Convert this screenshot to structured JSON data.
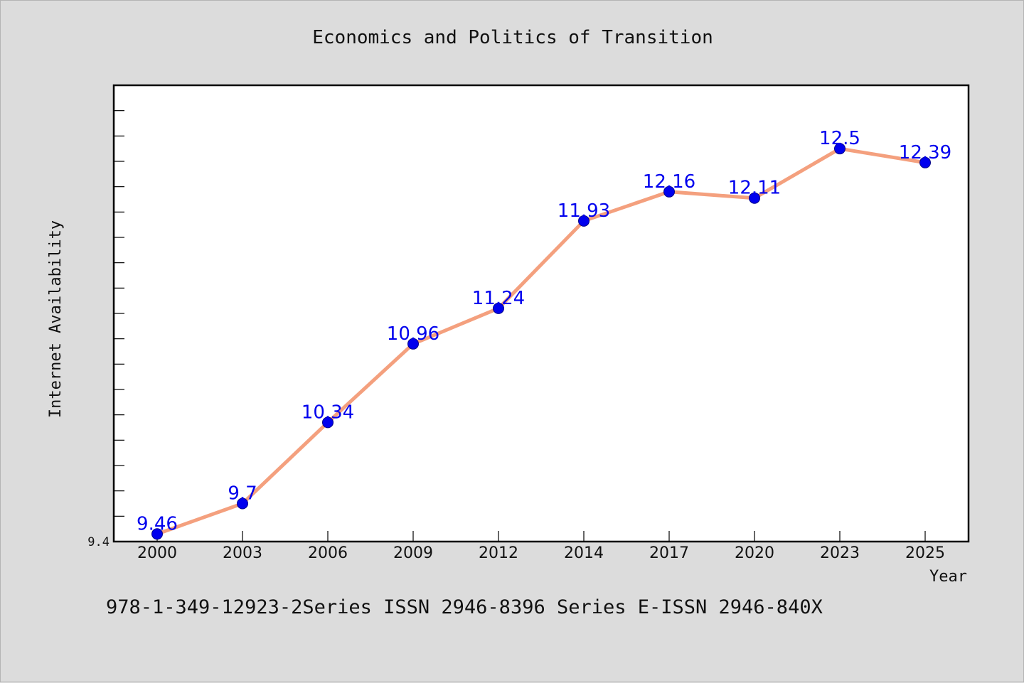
{
  "chart_data": {
    "type": "line",
    "title": "Economics and Politics of Transition",
    "xlabel": "Year",
    "ylabel": "Internet Availability",
    "categories": [
      "2000",
      "2003",
      "2006",
      "2009",
      "2012",
      "2014",
      "2017",
      "2020",
      "2023",
      "2025"
    ],
    "series": [
      {
        "values": [
          9.46,
          9.7,
          10.34,
          10.96,
          11.24,
          11.93,
          12.16,
          12.11,
          12.5,
          12.39
        ],
        "labels": [
          "9.46",
          "9.7",
          "10.34",
          "10.96",
          "11.24",
          "11.93",
          "12.16",
          "12.11",
          "12.5",
          "12.39"
        ]
      }
    ],
    "ylim": [
      9.4,
      13.0
    ],
    "y_tick_labels": [
      "9.4"
    ],
    "grid": false,
    "line_color": "#f4a07e",
    "marker_color": "#0000ee",
    "label_color": "#0000ee"
  },
  "footer": {
    "text": "978-1-349-12923-2Series ISSN 2946-8396 Series E-ISSN 2946-840X"
  }
}
